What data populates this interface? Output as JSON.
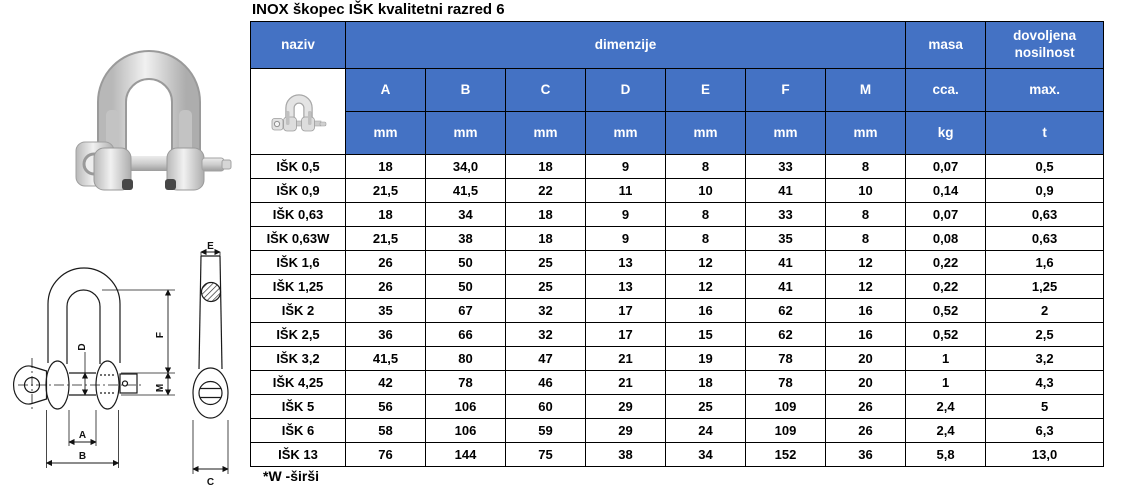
{
  "title": "INOX škopec IŠK kvalitetni razred 6",
  "footnote": "*W -širši",
  "colors": {
    "header_blue": "#4472C4",
    "header_text": "#FFFFFF",
    "border": "#000000",
    "body_text": "#000000"
  },
  "table": {
    "header": {
      "naziv": "naziv",
      "dimenzije": "dimenzije",
      "masa": "masa",
      "dovoljena_nosilnost": "dovoljena nosilnost",
      "dim_columns": [
        "A",
        "B",
        "C",
        "D",
        "E",
        "F",
        "M"
      ],
      "masa_sub": "cca.",
      "nosilnost_sub": "max.",
      "units": [
        "mm",
        "mm",
        "mm",
        "mm",
        "mm",
        "mm",
        "mm",
        "kg",
        "t"
      ]
    },
    "rows": [
      [
        "IŠK 0,5",
        "18",
        "34,0",
        "18",
        "9",
        "8",
        "33",
        "8",
        "0,07",
        "0,5"
      ],
      [
        "IŠK 0,9",
        "21,5",
        "41,5",
        "22",
        "11",
        "10",
        "41",
        "10",
        "0,14",
        "0,9"
      ],
      [
        "IŠK 0,63",
        "18",
        "34",
        "18",
        "9",
        "8",
        "33",
        "8",
        "0,07",
        "0,63"
      ],
      [
        "IŠK 0,63W",
        "21,5",
        "38",
        "18",
        "9",
        "8",
        "35",
        "8",
        "0,08",
        "0,63"
      ],
      [
        "IŠK 1,6",
        "26",
        "50",
        "25",
        "13",
        "12",
        "41",
        "12",
        "0,22",
        "1,6"
      ],
      [
        "IŠK 1,25",
        "26",
        "50",
        "25",
        "13",
        "12",
        "41",
        "12",
        "0,22",
        "1,25"
      ],
      [
        "IŠK 2",
        "35",
        "67",
        "32",
        "17",
        "16",
        "62",
        "16",
        "0,52",
        "2"
      ],
      [
        "IŠK 2,5",
        "36",
        "66",
        "32",
        "17",
        "15",
        "62",
        "16",
        "0,52",
        "2,5"
      ],
      [
        "IŠK 3,2",
        "41,5",
        "80",
        "47",
        "21",
        "19",
        "78",
        "20",
        "1",
        "3,2"
      ],
      [
        "IŠK 4,25",
        "42",
        "78",
        "46",
        "21",
        "18",
        "78",
        "20",
        "1",
        "4,3"
      ],
      [
        "IŠK 5",
        "56",
        "106",
        "60",
        "29",
        "25",
        "109",
        "26",
        "2,4",
        "5"
      ],
      [
        "IŠK 6",
        "58",
        "106",
        "59",
        "29",
        "24",
        "109",
        "26",
        "2,4",
        "6,3"
      ],
      [
        "IŠK 13",
        "76",
        "144",
        "75",
        "38",
        "34",
        "152",
        "36",
        "5,8",
        "13,0"
      ]
    ]
  },
  "drawings": {
    "dimension_labels": {
      "A": "A",
      "B": "B",
      "C": "C",
      "D": "D",
      "E": "E",
      "F": "F",
      "M": "M"
    }
  }
}
